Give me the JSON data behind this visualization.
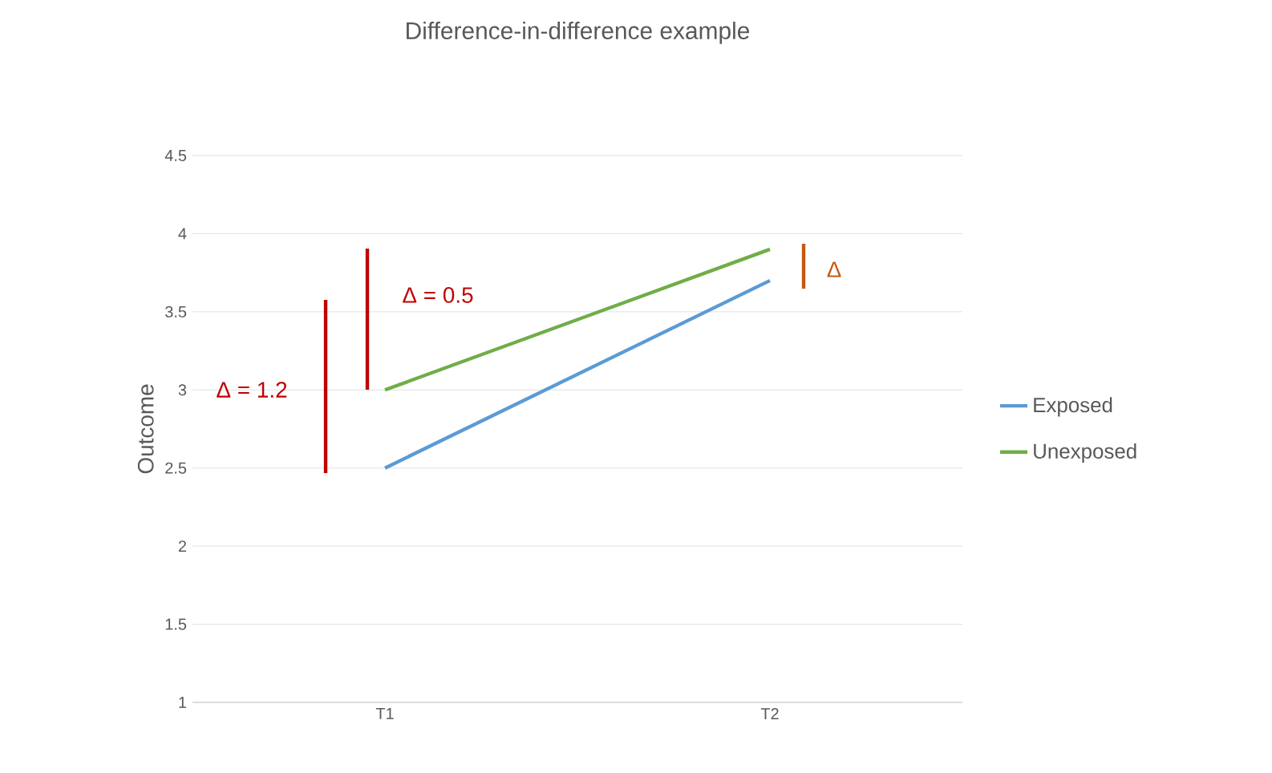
{
  "chart_data": {
    "type": "line",
    "title": "Difference-in-difference example",
    "ylabel": "Outcome",
    "categories": [
      "T1",
      "T2"
    ],
    "series": [
      {
        "name": "Exposed",
        "color": "#5b9bd5",
        "values": [
          2.5,
          3.7
        ]
      },
      {
        "name": "Unexposed",
        "color": "#70ad47",
        "values": [
          3.0,
          3.9
        ]
      }
    ],
    "ylim": [
      1,
      4.5
    ],
    "yticks": [
      1,
      1.5,
      2,
      2.5,
      3,
      3.5,
      4,
      4.5
    ],
    "grid": "y",
    "legend": "right",
    "marker": "none",
    "line_style": "solid",
    "annotations": [
      "Δ = 1.2",
      "Δ = 0.5",
      "Δ"
    ]
  }
}
